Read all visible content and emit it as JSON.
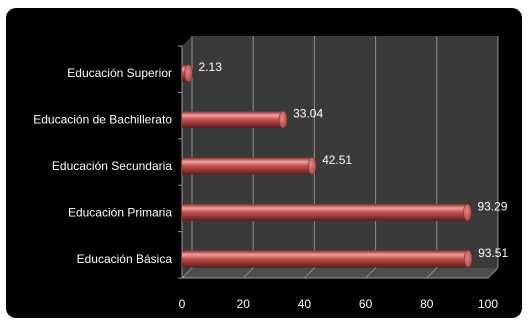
{
  "chart_data": {
    "type": "bar",
    "orientation": "horizontal",
    "style": "3d-cylinder",
    "categories": [
      "Educación Superior",
      "Educación de Bachillerato",
      "Educación Secundaria",
      "Educación Primaria",
      "Educación Básica"
    ],
    "values": [
      2.13,
      33.04,
      42.51,
      93.29,
      93.51
    ],
    "data_labels": [
      "2.13",
      "33.04",
      "42.51",
      "93.29",
      "93.51"
    ],
    "xlim": [
      0,
      100
    ],
    "xticks": [
      "0",
      "20",
      "40",
      "60",
      "80",
      "100"
    ],
    "title": "",
    "xlabel": "",
    "ylabel": "",
    "grid": "vertical",
    "legend": "none"
  },
  "colors": {
    "background": "#000000",
    "wall": "#3c3c3c",
    "floor": "#525252",
    "gridline": "#8c8c8c",
    "bar": "#c0504d",
    "bar_highlight": "#f0a09e",
    "bar_shadow": "#7a2a28",
    "text": "#ffffff"
  }
}
